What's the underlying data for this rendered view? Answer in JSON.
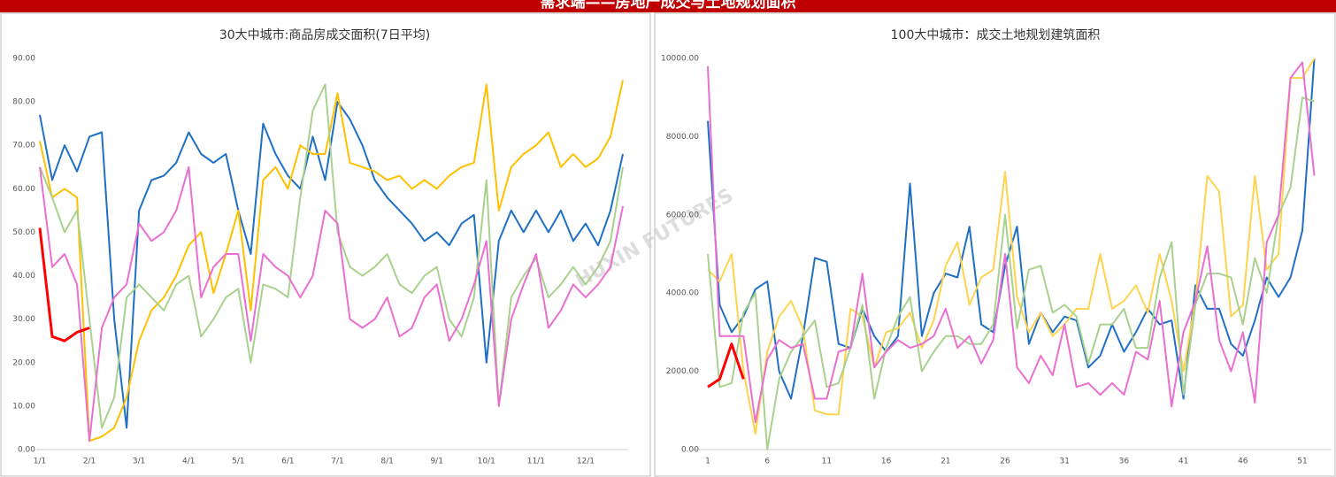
{
  "header": {
    "title": "需求端——房地产成交与土地规划面积"
  },
  "watermark": "HUXIN FUTURES",
  "chart_data": [
    {
      "type": "line",
      "title": "30大中城市:商品房成交面积(7日平均)",
      "categories": [
        "1/1",
        null,
        null,
        null,
        "2/1",
        null,
        null,
        null,
        "3/1",
        null,
        null,
        null,
        "4/1",
        null,
        null,
        null,
        "5/1",
        null,
        null,
        null,
        "6/1",
        null,
        null,
        null,
        "7/1",
        null,
        null,
        null,
        "8/1",
        null,
        null,
        null,
        "9/1",
        null,
        null,
        null,
        "10/1",
        null,
        null,
        null,
        "11/1",
        null,
        null,
        null,
        "12/1",
        null,
        null,
        null
      ],
      "ylim": [
        0,
        90
      ],
      "yticks": [
        {
          "value": 0,
          "label": "0.00"
        },
        {
          "value": 10,
          "label": "10.00"
        },
        {
          "value": 20,
          "label": "20.00"
        },
        {
          "value": 30,
          "label": "30.00"
        },
        {
          "value": 40,
          "label": "40.00"
        },
        {
          "value": 50,
          "label": "50.00"
        },
        {
          "value": 60,
          "label": "60.00"
        },
        {
          "value": 70,
          "label": "70.00"
        },
        {
          "value": 80,
          "label": "80.00"
        },
        {
          "value": 90,
          "label": "90.00"
        }
      ],
      "grid": false,
      "series": [
        {
          "color": "#1f6fc5",
          "values": [
            77,
            62,
            70,
            64,
            72,
            73,
            30,
            5,
            55,
            62,
            63,
            66,
            73,
            68,
            66,
            68,
            55,
            45,
            75,
            68,
            63,
            60,
            72,
            62,
            80,
            76,
            70,
            62,
            58,
            55,
            52,
            48,
            50,
            47,
            52,
            54,
            20,
            48,
            55,
            50,
            55,
            50,
            55,
            48,
            52,
            47,
            55,
            68
          ]
        },
        {
          "color": "#ffc000",
          "values": [
            71,
            58,
            60,
            58,
            2,
            3,
            5,
            12,
            25,
            32,
            35,
            40,
            47,
            50,
            36,
            45,
            55,
            32,
            62,
            65,
            60,
            70,
            68,
            68,
            82,
            66,
            65,
            64,
            62,
            63,
            60,
            62,
            60,
            63,
            65,
            66,
            84,
            55,
            65,
            68,
            70,
            73,
            65,
            68,
            65,
            67,
            72,
            85
          ]
        },
        {
          "color": "#a9d18e",
          "values": [
            65,
            58,
            50,
            55,
            30,
            5,
            12,
            35,
            38,
            35,
            32,
            38,
            40,
            26,
            30,
            35,
            37,
            20,
            38,
            37,
            35,
            58,
            78,
            84,
            50,
            42,
            40,
            42,
            45,
            38,
            36,
            40,
            42,
            30,
            26,
            35,
            62,
            10,
            35,
            40,
            44,
            35,
            38,
            42,
            38,
            42,
            48,
            65
          ]
        },
        {
          "color": "#e96fd0",
          "values": [
            65,
            42,
            45,
            38,
            2,
            28,
            35,
            38,
            52,
            48,
            50,
            55,
            65,
            35,
            42,
            45,
            45,
            25,
            45,
            42,
            40,
            35,
            40,
            55,
            52,
            30,
            28,
            30,
            35,
            26,
            28,
            35,
            38,
            25,
            30,
            38,
            48,
            10,
            30,
            38,
            45,
            28,
            32,
            38,
            35,
            38,
            42,
            56
          ]
        },
        {
          "color": "#ff0000",
          "values": [
            51,
            26,
            25,
            27,
            28,
            null,
            null,
            null,
            null,
            null,
            null,
            null,
            null,
            null,
            null,
            null,
            null,
            null,
            null,
            null,
            null,
            null,
            null,
            null,
            null,
            null,
            null,
            null,
            null,
            null,
            null,
            null,
            null,
            null,
            null,
            null,
            null,
            null,
            null,
            null,
            null,
            null,
            null,
            null,
            null,
            null,
            null,
            null
          ]
        }
      ]
    },
    {
      "type": "line",
      "title": "100大中城市：成交土地规划建筑面积",
      "x": [
        1,
        2,
        3,
        4,
        5,
        6,
        7,
        8,
        9,
        10,
        11,
        12,
        13,
        14,
        15,
        16,
        17,
        18,
        19,
        20,
        21,
        22,
        23,
        24,
        25,
        26,
        27,
        28,
        29,
        30,
        31,
        32,
        33,
        34,
        35,
        36,
        37,
        38,
        39,
        40,
        41,
        42,
        43,
        44,
        45,
        46,
        47,
        48,
        49,
        50,
        51,
        52
      ],
      "xlim": [
        0,
        53
      ],
      "xticks": [
        1,
        6,
        11,
        16,
        21,
        26,
        31,
        36,
        41,
        46,
        51
      ],
      "ylim": [
        0,
        10000
      ],
      "yticks": [
        {
          "value": 0,
          "label": "0.00"
        },
        {
          "value": 2000,
          "label": "2000.00"
        },
        {
          "value": 4000,
          "label": "4000.00"
        },
        {
          "value": 6000,
          "label": "6000.00"
        },
        {
          "value": 8000,
          "label": "8000.00"
        },
        {
          "value": 10000,
          "label": "10000.00"
        }
      ],
      "grid": false,
      "series": [
        {
          "color": "#1f6fc5",
          "values": [
            8400,
            3700,
            3000,
            3400,
            4100,
            4300,
            2000,
            1300,
            2900,
            4900,
            4800,
            2700,
            2600,
            3600,
            2900,
            2500,
            2900,
            6800,
            2900,
            4000,
            4500,
            4400,
            5700,
            3200,
            3000,
            4700,
            5700,
            2700,
            3500,
            3000,
            3400,
            3300,
            2100,
            2400,
            3200,
            2500,
            3000,
            3600,
            3200,
            3300,
            1300,
            4200,
            3600,
            3600,
            2700,
            2400,
            3300,
            4400,
            3900,
            4400,
            5600,
            10000
          ]
        },
        {
          "color": "#ffd34d",
          "values": [
            4600,
            4300,
            5000,
            2000,
            400,
            2500,
            3400,
            3800,
            3100,
            1000,
            900,
            900,
            3600,
            3400,
            2100,
            3000,
            3100,
            3500,
            2600,
            3300,
            4700,
            5300,
            3700,
            4400,
            4600,
            7100,
            3900,
            3000,
            3500,
            2900,
            3200,
            3600,
            3600,
            5000,
            3600,
            3800,
            4200,
            3500,
            5000,
            3800,
            2000,
            3800,
            7000,
            6600,
            3400,
            3700,
            7000,
            4600,
            5000,
            9500,
            9500,
            10000
          ]
        },
        {
          "color": "#a9d18e",
          "values": [
            5000,
            1600,
            1700,
            3500,
            4000,
            0,
            1800,
            2500,
            2900,
            3300,
            1600,
            1700,
            2600,
            3700,
            1300,
            2600,
            3400,
            3900,
            2000,
            2500,
            2900,
            2900,
            2700,
            2700,
            3200,
            6000,
            3100,
            4600,
            4700,
            3500,
            3700,
            3400,
            2200,
            3200,
            3200,
            3600,
            2600,
            2600,
            4400,
            5300,
            1400,
            3700,
            4500,
            4500,
            4400,
            3200,
            4900,
            4000,
            6000,
            6700,
            9000,
            8900
          ]
        },
        {
          "color": "#e96fd0",
          "values": [
            9800,
            2900,
            2900,
            2900,
            700,
            2300,
            2800,
            2600,
            2700,
            1300,
            1300,
            2500,
            2600,
            4500,
            2100,
            2500,
            2800,
            2600,
            2700,
            2900,
            3600,
            2600,
            2900,
            2200,
            2800,
            5000,
            2100,
            1700,
            2400,
            1900,
            3200,
            1600,
            1700,
            1400,
            1700,
            1400,
            2500,
            2300,
            3800,
            1100,
            3000,
            3800,
            5200,
            2800,
            2000,
            3000,
            1200,
            5300,
            6000,
            9500,
            9900,
            7000
          ]
        },
        {
          "color": "#ff0000",
          "values": [
            1600,
            1800,
            2700,
            1800,
            null,
            null,
            null,
            null,
            null,
            null,
            null,
            null,
            null,
            null,
            null,
            null,
            null,
            null,
            null,
            null,
            null,
            null,
            null,
            null,
            null,
            null,
            null,
            null,
            null,
            null,
            null,
            null,
            null,
            null,
            null,
            null,
            null,
            null,
            null,
            null,
            null,
            null,
            null,
            null,
            null,
            null,
            null,
            null,
            null,
            null,
            null,
            null
          ]
        }
      ]
    }
  ]
}
